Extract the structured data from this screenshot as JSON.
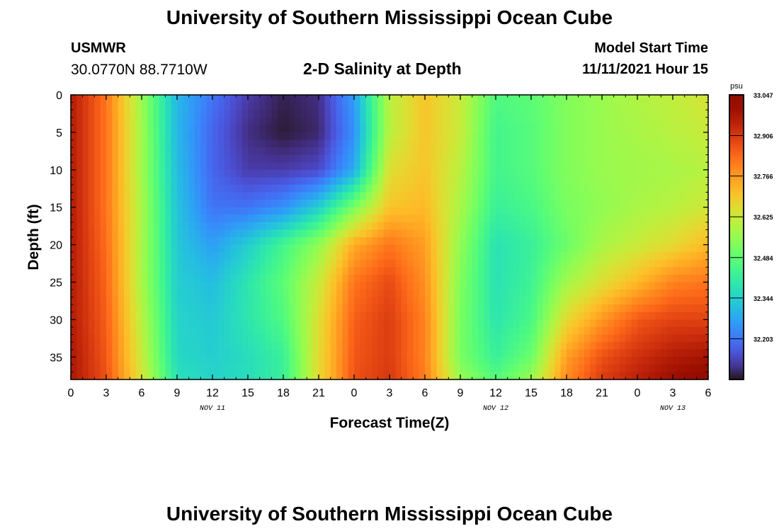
{
  "header": {
    "title": "University of Southern Mississippi Ocean Cube",
    "station": "USMWR",
    "coords": "30.0770N  88.7710W",
    "subtitle": "2-D Salinity at Depth",
    "model_label": "Model Start Time",
    "model_time": "11/11/2021 Hour 15"
  },
  "footer": {
    "title": "University of Southern Mississippi Ocean Cube"
  },
  "chart_data": {
    "type": "heatmap",
    "title": "2-D Salinity at Depth",
    "xlabel": "Forecast Time(Z)",
    "ylabel": "Depth (ft)",
    "x_tick_labels": [
      "0",
      "3",
      "6",
      "9",
      "12",
      "15",
      "18",
      "21",
      "0",
      "3",
      "6",
      "9",
      "12",
      "15",
      "18",
      "21",
      "0",
      "3",
      "6"
    ],
    "x_range_hours": [
      0,
      54
    ],
    "date_labels": [
      {
        "label": "NOV 11",
        "hour": 12
      },
      {
        "label": "NOV 12",
        "hour": 36
      },
      {
        "label": "NOV 13",
        "hour": 51
      }
    ],
    "y_ticks": [
      0,
      5,
      10,
      15,
      20,
      25,
      30,
      35
    ],
    "y_range_ft": [
      0,
      38
    ],
    "y_reversed": true,
    "colorbar": {
      "unit": "psu",
      "min": 32.062,
      "max": 33.047,
      "tick_labels": [
        "33.047",
        "32.906",
        "32.766",
        "32.625",
        "32.484",
        "32.344",
        "32.203"
      ],
      "tick_values": [
        33.047,
        32.906,
        32.766,
        32.625,
        32.484,
        32.344,
        32.203
      ],
      "colormap": "turbo"
    },
    "grid": false,
    "value_field_psu": {
      "x_hours": [
        0,
        3,
        6,
        9,
        12,
        15,
        18,
        21,
        24,
        27,
        30,
        33,
        36,
        39,
        42,
        45,
        48,
        51,
        54
      ],
      "depth_ft": [
        0,
        5,
        10,
        15,
        20,
        25,
        30,
        35,
        38
      ],
      "values": [
        [
          32.96,
          32.82,
          32.56,
          32.3,
          32.2,
          32.12,
          32.08,
          32.1,
          32.26,
          32.6,
          32.7,
          32.62,
          32.46,
          32.48,
          32.53,
          32.56,
          32.59,
          32.61,
          32.64
        ],
        [
          32.96,
          32.82,
          32.57,
          32.3,
          32.18,
          32.1,
          32.07,
          32.09,
          32.24,
          32.6,
          32.7,
          32.62,
          32.44,
          32.47,
          32.53,
          32.56,
          32.58,
          32.6,
          32.62
        ],
        [
          32.96,
          32.82,
          32.57,
          32.31,
          32.18,
          32.12,
          32.12,
          32.14,
          32.28,
          32.65,
          32.7,
          32.6,
          32.44,
          32.47,
          32.53,
          32.56,
          32.57,
          32.58,
          32.6
        ],
        [
          32.96,
          32.82,
          32.58,
          32.32,
          32.2,
          32.2,
          32.24,
          32.34,
          32.52,
          32.7,
          32.72,
          32.58,
          32.42,
          32.45,
          32.52,
          32.55,
          32.58,
          32.6,
          32.63
        ],
        [
          32.96,
          32.83,
          32.58,
          32.33,
          32.26,
          32.34,
          32.44,
          32.55,
          32.74,
          32.82,
          32.76,
          32.55,
          32.38,
          32.42,
          32.5,
          32.58,
          32.62,
          32.66,
          32.72
        ],
        [
          32.96,
          32.84,
          32.58,
          32.34,
          32.31,
          32.39,
          32.48,
          32.62,
          32.82,
          32.88,
          32.78,
          32.53,
          32.38,
          32.43,
          32.57,
          32.65,
          32.72,
          32.8,
          32.82
        ],
        [
          32.96,
          32.85,
          32.6,
          32.35,
          32.33,
          32.39,
          32.46,
          32.65,
          32.85,
          32.9,
          32.8,
          32.52,
          32.39,
          32.45,
          32.66,
          32.77,
          32.86,
          32.89,
          32.89
        ],
        [
          32.97,
          32.86,
          32.62,
          32.36,
          32.34,
          32.37,
          32.42,
          32.66,
          32.86,
          32.9,
          32.8,
          32.52,
          32.42,
          32.5,
          32.76,
          32.87,
          32.92,
          32.96,
          32.98
        ],
        [
          32.97,
          32.87,
          32.64,
          32.38,
          32.35,
          32.37,
          32.42,
          32.66,
          32.87,
          32.91,
          32.81,
          32.56,
          32.47,
          32.56,
          32.79,
          32.9,
          32.95,
          33.0,
          33.04
        ]
      ]
    }
  }
}
